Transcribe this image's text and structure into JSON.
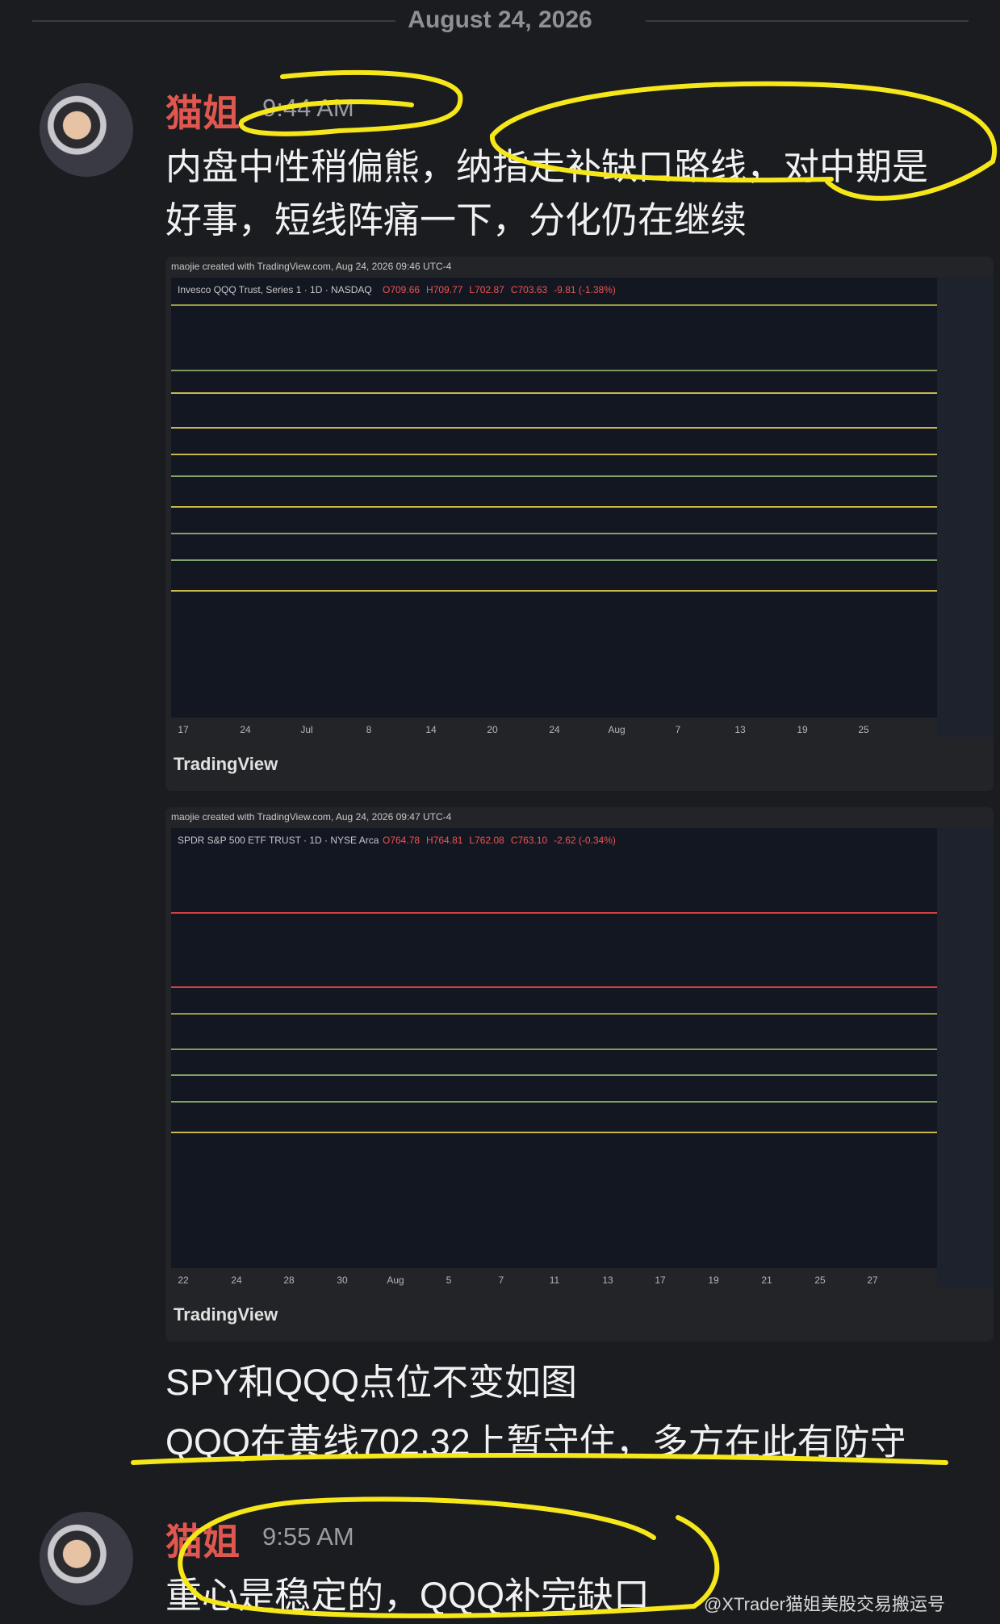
{
  "date_divider": "August 24, 2026",
  "messages": [
    {
      "author": "猫姐",
      "time": "9:44 AM",
      "lines": [
        "内盘中性稍偏熊，纳指走补缺口路线，对中期是",
        "好事，短线阵痛一下，分化仍在继续"
      ],
      "attachments": [
        {
          "caption": "maojie created with TradingView.com, Aug 24, 2026 09:46 UTC-4",
          "symbol": "Invesco QQQ Trust, Series 1 · 1D · NASDAQ",
          "ohlc": [
            "O709.66",
            "H709.77",
            "L702.87",
            "C703.63",
            "-9.81 (-1.38%)"
          ],
          "x_labels": [
            "17",
            "24",
            "Jul",
            "8",
            "14",
            "20",
            "24",
            "Aug",
            "7",
            "13",
            "19",
            "25"
          ],
          "brand": "TradingView"
        },
        {
          "caption": "maojie created with TradingView.com, Aug 24, 2026 09:47 UTC-4",
          "symbol": "SPDR S&P 500 ETF TRUST · 1D · NYSE Arca",
          "ohlc": [
            "O764.78",
            "H764.81",
            "L762.08",
            "C763.10",
            "-2.62 (-0.34%)"
          ],
          "x_labels": [
            "22",
            "24",
            "28",
            "30",
            "Aug",
            "5",
            "7",
            "11",
            "13",
            "17",
            "19",
            "21",
            "25",
            "27"
          ],
          "brand": "TradingView"
        }
      ],
      "after_lines": [
        "SPY和QQQ点位不变如图",
        "QQQ在黄线702.32上暂守住，多方在此有防守"
      ]
    },
    {
      "author": "猫姐",
      "time": "9:55 AM",
      "lines": [
        "重心是稳定的，QQQ补完缺口"
      ]
    }
  ],
  "watermark": "@XTrader猫姐美股交易搬运号"
}
